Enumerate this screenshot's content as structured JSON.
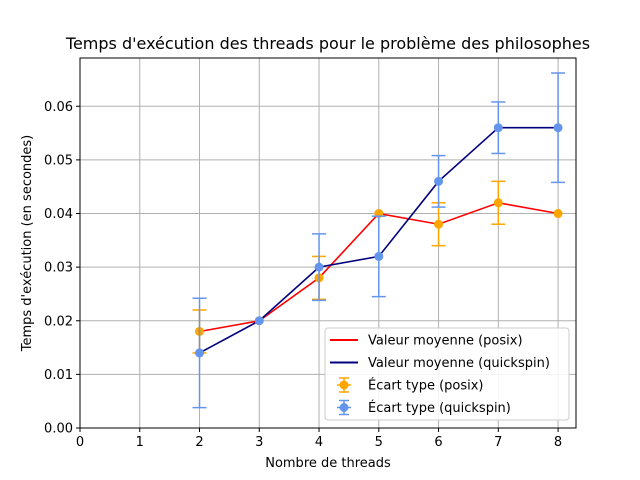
{
  "chart_data": {
    "type": "line",
    "title": "Temps d'exécution des threads pour le problème des philosophes",
    "xlabel": "Nombre de threads",
    "ylabel": "Temps d'exécution (en secondes)",
    "xlim": [
      0,
      8.3
    ],
    "ylim": [
      0,
      0.069
    ],
    "xticks": [
      "0",
      "1",
      "2",
      "3",
      "4",
      "5",
      "6",
      "7",
      "8"
    ],
    "yticks": [
      "0.00",
      "0.01",
      "0.02",
      "0.03",
      "0.04",
      "0.05",
      "0.06"
    ],
    "grid": true,
    "legend_position": "bottom-right",
    "x": [
      2,
      3,
      4,
      5,
      6,
      7,
      8
    ],
    "series": [
      {
        "name": "Valeur moyenne (posix)",
        "errorbar_name": "Écart type (posix)",
        "line_color": "#ff0000",
        "marker_color": "#ffa500",
        "values": [
          0.018,
          0.02,
          0.028,
          0.04,
          0.038,
          0.042,
          0.04
        ],
        "errors": [
          0.004,
          0.0,
          0.004,
          0.0,
          0.004,
          0.004,
          0.0
        ]
      },
      {
        "name": "Valeur moyenne (quickspin)",
        "errorbar_name": "Écart type (quickspin)",
        "line_color": "#00007f",
        "marker_color": "#6495ed",
        "values": [
          0.014,
          0.02,
          0.03,
          0.032,
          0.046,
          0.056,
          0.056
        ],
        "errors": [
          0.0102,
          0.0,
          0.0062,
          0.0075,
          0.0048,
          0.0048,
          0.0102
        ]
      }
    ]
  }
}
